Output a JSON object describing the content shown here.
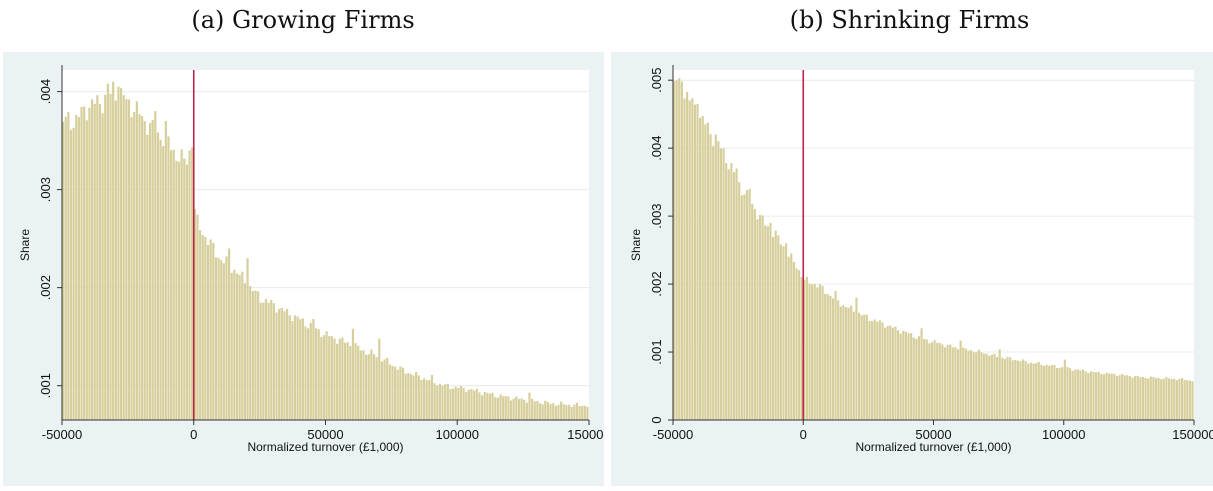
{
  "charts": [
    {
      "caption": "(a) Growing Firms",
      "chart_data": {
        "type": "histogram",
        "xlabel": "Normalized turnover (£1,000)",
        "ylabel": "Share",
        "xlim": [
          -50000,
          150000
        ],
        "ylim": [
          0.00065,
          0.00422
        ],
        "x_ticks": [
          -50000,
          0,
          50000,
          100000,
          150000
        ],
        "x_tick_labels": [
          "-50000",
          "0",
          "50000",
          "100000",
          "150000"
        ],
        "y_ticks": [
          0.001,
          0.002,
          0.003,
          0.004
        ],
        "y_tick_labels": [
          ".001",
          ".002",
          ".003",
          ".004"
        ],
        "bin_width": 1000,
        "bar_color": "#d6cf9c",
        "threshold_line": {
          "x": 0,
          "color": "#c0234a"
        },
        "grid": "horizontal",
        "anchors": [
          [
            -49500,
            0.0037
          ],
          [
            -45000,
            0.0037
          ],
          [
            -40000,
            0.00385
          ],
          [
            -35000,
            0.0039
          ],
          [
            -30000,
            0.004
          ],
          [
            -25000,
            0.0039
          ],
          [
            -20000,
            0.00375
          ],
          [
            -15000,
            0.0036
          ],
          [
            -10000,
            0.0035
          ],
          [
            -5000,
            0.0033
          ],
          [
            -500,
            0.0033
          ],
          [
            500,
            0.0027
          ],
          [
            5000,
            0.0025
          ],
          [
            10000,
            0.0023
          ],
          [
            15000,
            0.0022
          ],
          [
            20000,
            0.00205
          ],
          [
            25000,
            0.0019
          ],
          [
            30000,
            0.00183
          ],
          [
            35000,
            0.00175
          ],
          [
            40000,
            0.00168
          ],
          [
            45000,
            0.0016
          ],
          [
            50000,
            0.00152
          ],
          [
            55000,
            0.00147
          ],
          [
            60000,
            0.00142
          ],
          [
            65000,
            0.00135
          ],
          [
            70000,
            0.0013
          ],
          [
            75000,
            0.00122
          ],
          [
            80000,
            0.00115
          ],
          [
            85000,
            0.0011
          ],
          [
            90000,
            0.00105
          ],
          [
            95000,
            0.001
          ],
          [
            100000,
            0.00098
          ],
          [
            105000,
            0.00096
          ],
          [
            110000,
            0.00093
          ],
          [
            115000,
            0.0009
          ],
          [
            120000,
            0.00088
          ],
          [
            125000,
            0.00086
          ],
          [
            130000,
            0.00084
          ],
          [
            135000,
            0.00082
          ],
          [
            140000,
            0.00081
          ],
          [
            145000,
            0.0008
          ],
          [
            149500,
            0.0008
          ]
        ],
        "spikes": [
          [
            -30500,
            0.0041
          ],
          [
            -28500,
            0.00405
          ],
          [
            -32500,
            0.00408
          ],
          [
            -14500,
            0.0038
          ],
          [
            -10500,
            0.0037
          ],
          [
            -500,
            0.00343
          ],
          [
            -1500,
            0.0034
          ],
          [
            500,
            0.0028
          ],
          [
            13500,
            0.0024
          ],
          [
            20500,
            0.0023
          ],
          [
            45500,
            0.00168
          ],
          [
            60500,
            0.00158
          ],
          [
            70500,
            0.00148
          ],
          [
            90500,
            0.00111
          ],
          [
            127500,
            0.00093
          ]
        ]
      }
    },
    {
      "caption": "(b) Shrinking Firms",
      "chart_data": {
        "type": "histogram",
        "xlabel": "Normalized turnover (£1,000)",
        "ylabel": "Share",
        "xlim": [
          -50000,
          150000
        ],
        "ylim": [
          0,
          0.00515
        ],
        "x_ticks": [
          -50000,
          0,
          50000,
          100000,
          150000
        ],
        "x_tick_labels": [
          "-50000",
          "0",
          "50000",
          "100000",
          "150000"
        ],
        "y_ticks": [
          0,
          0.001,
          0.002,
          0.003,
          0.004,
          0.005
        ],
        "y_tick_labels": [
          "0",
          ".001",
          ".002",
          ".003",
          ".004",
          ".005"
        ],
        "bin_width": 1000,
        "bar_color": "#d6cf9c",
        "threshold_line": {
          "x": 0,
          "color": "#c0234a"
        },
        "grid": "horizontal",
        "anchors": [
          [
            -49500,
            0.005
          ],
          [
            -45000,
            0.0048
          ],
          [
            -40000,
            0.0045
          ],
          [
            -35000,
            0.0042
          ],
          [
            -30000,
            0.0039
          ],
          [
            -25000,
            0.0035
          ],
          [
            -20000,
            0.0032
          ],
          [
            -15000,
            0.0029
          ],
          [
            -10000,
            0.0027
          ],
          [
            -5000,
            0.0024
          ],
          [
            -500,
            0.00215
          ],
          [
            500,
            0.00205
          ],
          [
            5000,
            0.002
          ],
          [
            10000,
            0.00185
          ],
          [
            15000,
            0.0017
          ],
          [
            20000,
            0.0016
          ],
          [
            25000,
            0.0015
          ],
          [
            30000,
            0.00143
          ],
          [
            35000,
            0.00135
          ],
          [
            40000,
            0.00128
          ],
          [
            45000,
            0.0012
          ],
          [
            50000,
            0.00115
          ],
          [
            55000,
            0.0011
          ],
          [
            60000,
            0.00105
          ],
          [
            65000,
            0.00102
          ],
          [
            70000,
            0.00098
          ],
          [
            75000,
            0.00093
          ],
          [
            80000,
            0.0009
          ],
          [
            85000,
            0.00086
          ],
          [
            90000,
            0.00083
          ],
          [
            95000,
            0.0008
          ],
          [
            100000,
            0.00077
          ],
          [
            105000,
            0.00074
          ],
          [
            110000,
            0.00071
          ],
          [
            115000,
            0.00069
          ],
          [
            120000,
            0.00067
          ],
          [
            125000,
            0.00065
          ],
          [
            130000,
            0.00063
          ],
          [
            135000,
            0.00062
          ],
          [
            140000,
            0.00061
          ],
          [
            145000,
            0.0006
          ],
          [
            149500,
            0.00058
          ]
        ],
        "spikes": [
          [
            -48500,
            0.005
          ],
          [
            -46500,
            0.00498
          ],
          [
            -40500,
            0.00465
          ],
          [
            -33500,
            0.0042
          ],
          [
            -25500,
            0.0037
          ],
          [
            -20500,
            0.0034
          ],
          [
            -12500,
            0.0029
          ],
          [
            -6500,
            0.0026
          ],
          [
            12500,
            0.0019
          ],
          [
            20500,
            0.0018
          ],
          [
            45500,
            0.00135
          ],
          [
            60500,
            0.00117
          ],
          [
            75500,
            0.00104
          ],
          [
            100500,
            0.00089
          ]
        ]
      }
    }
  ]
}
